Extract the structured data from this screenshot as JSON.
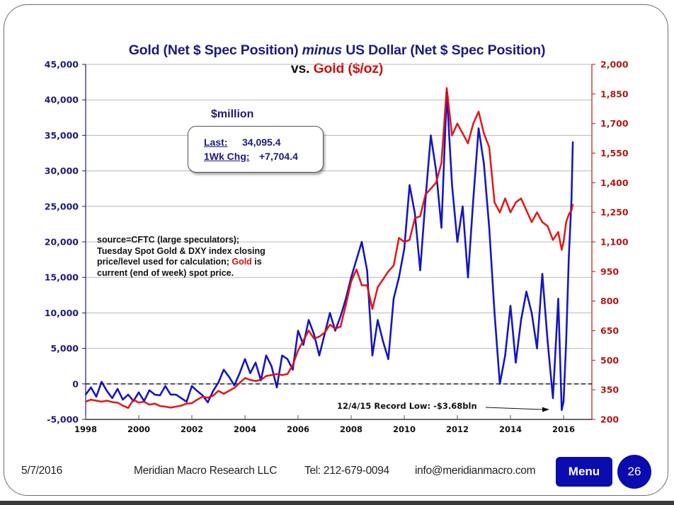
{
  "slide": {
    "title_part1": "Gold (Net $ Spec Position) ",
    "title_italic": "minus",
    "title_part2": " US Dollar (Net $ Spec Position)",
    "subtitle_vs": "vs. ",
    "subtitle_gold": "Gold ($/oz)",
    "unit_label": "$million",
    "stats": {
      "last_label": "Last:",
      "last_value": "34,095.4",
      "chg_label": "1Wk Chg:",
      "chg_value": "+7,704.4"
    },
    "source_note": {
      "line1": "source=CFTC (large speculators);",
      "line2": "Tuesday Spot Gold & DXY index closing",
      "line3a": "price/level used for calculation; ",
      "line3_gold": "Gold",
      "line3b": " is",
      "line4": "current (end of week) spot price."
    },
    "annotation": "12/4/15 Record Low:  -$3.68bln",
    "footer": {
      "date": "5/7/2016",
      "company": "Meridian Macro Research  LLC",
      "phone": "Tel: 212-679-0094",
      "email": "info@meridianmacro.com",
      "menu_label": "Menu",
      "page_number": "26"
    },
    "colors": {
      "net_position": "#0b0bb8",
      "gold": "#dd1111",
      "left_axis": "#1c1c7a",
      "right_axis": "#b01818",
      "button": "#0b0bb0"
    }
  },
  "chart_data": {
    "type": "line",
    "title": "Gold (Net $ Spec Position) minus US Dollar (Net $ Spec Position) vs. Gold ($/oz)",
    "xlabel": "",
    "x_range": [
      1998,
      2016.4
    ],
    "x_ticks": [
      "1998",
      "2000",
      "2002",
      "2004",
      "2006",
      "2008",
      "2010",
      "2012",
      "2014",
      "2016"
    ],
    "ylabel_left": "$million",
    "ylim_left": [
      -5000,
      45000
    ],
    "yticks_left": [
      "45,000",
      "40,000",
      "35,000",
      "30,000",
      "25,000",
      "20,000",
      "15,000",
      "10,000",
      "5,000",
      "0",
      "-5,000"
    ],
    "ylim_right": [
      200,
      2000
    ],
    "yticks_right": [
      "2,000",
      "1,850",
      "1,700",
      "1,550",
      "1,400",
      "1,250",
      "1,100",
      "950",
      "800",
      "650",
      "500",
      "350",
      "200"
    ],
    "grid": "horizontal",
    "reference_line": {
      "axis": "left",
      "value": 0,
      "style": "dashed"
    },
    "series": [
      {
        "name": "Gold minus USD Net $ Spec Position",
        "axis": "left",
        "x": [
          1998.0,
          1998.2,
          1998.4,
          1998.6,
          1998.8,
          1999.0,
          1999.2,
          1999.4,
          1999.6,
          1999.8,
          2000.0,
          2000.2,
          2000.4,
          2000.6,
          2000.8,
          2001.0,
          2001.2,
          2001.4,
          2001.6,
          2001.8,
          2002.0,
          2002.2,
          2002.4,
          2002.6,
          2002.8,
          2003.0,
          2003.2,
          2003.4,
          2003.6,
          2003.8,
          2004.0,
          2004.2,
          2004.4,
          2004.6,
          2004.8,
          2005.0,
          2005.2,
          2005.4,
          2005.6,
          2005.8,
          2006.0,
          2006.2,
          2006.4,
          2006.6,
          2006.8,
          2007.0,
          2007.2,
          2007.4,
          2007.6,
          2007.8,
          2008.0,
          2008.2,
          2008.4,
          2008.6,
          2008.8,
          2009.0,
          2009.2,
          2009.4,
          2009.6,
          2009.8,
          2010.0,
          2010.2,
          2010.4,
          2010.6,
          2010.8,
          2011.0,
          2011.2,
          2011.4,
          2011.6,
          2011.8,
          2012.0,
          2012.2,
          2012.4,
          2012.6,
          2012.8,
          2013.0,
          2013.2,
          2013.4,
          2013.6,
          2013.8,
          2014.0,
          2014.2,
          2014.4,
          2014.6,
          2014.8,
          2015.0,
          2015.2,
          2015.4,
          2015.6,
          2015.8,
          2015.93,
          2016.0,
          2016.1,
          2016.2,
          2016.3,
          2016.35
        ],
        "values": [
          -1500,
          -500,
          -1800,
          300,
          -1000,
          -2000,
          -700,
          -2200,
          -1500,
          -2400,
          -1200,
          -2400,
          -900,
          -1500,
          -1600,
          -300,
          -1500,
          -1500,
          -2000,
          -2500,
          -300,
          -1000,
          -1600,
          -2600,
          -1000,
          200,
          2000,
          1000,
          -200,
          1500,
          3500,
          1500,
          3000,
          500,
          4000,
          2500,
          -500,
          4000,
          3500,
          2000,
          7500,
          5500,
          9000,
          7000,
          4000,
          7000,
          10000,
          7500,
          9500,
          12000,
          15000,
          17500,
          20000,
          16000,
          4000,
          9000,
          6000,
          3500,
          12000,
          15000,
          19000,
          28000,
          24000,
          16000,
          26000,
          35000,
          30000,
          22000,
          41000,
          28000,
          20000,
          25000,
          15000,
          26000,
          36000,
          31000,
          22000,
          10000,
          0,
          4000,
          11000,
          3000,
          9000,
          13000,
          10000,
          5000,
          15500,
          6000,
          -2000,
          12000,
          -3680,
          -2500,
          6000,
          18000,
          26000,
          34095
        ]
      },
      {
        "name": "Gold ($/oz)",
        "axis": "right",
        "x": [
          1998.0,
          1998.2,
          1998.4,
          1998.6,
          1998.8,
          1999.0,
          1999.2,
          1999.4,
          1999.6,
          1999.8,
          2000.0,
          2000.2,
          2000.4,
          2000.6,
          2000.8,
          2001.0,
          2001.2,
          2001.4,
          2001.6,
          2001.8,
          2002.0,
          2002.2,
          2002.4,
          2002.6,
          2002.8,
          2003.0,
          2003.2,
          2003.4,
          2003.6,
          2003.8,
          2004.0,
          2004.2,
          2004.4,
          2004.6,
          2004.8,
          2005.0,
          2005.2,
          2005.4,
          2005.6,
          2005.8,
          2006.0,
          2006.2,
          2006.4,
          2006.6,
          2006.8,
          2007.0,
          2007.2,
          2007.4,
          2007.6,
          2007.8,
          2008.0,
          2008.2,
          2008.4,
          2008.6,
          2008.8,
          2009.0,
          2009.2,
          2009.4,
          2009.6,
          2009.8,
          2010.0,
          2010.2,
          2010.4,
          2010.6,
          2010.8,
          2011.0,
          2011.2,
          2011.4,
          2011.6,
          2011.8,
          2012.0,
          2012.2,
          2012.4,
          2012.6,
          2012.8,
          2013.0,
          2013.2,
          2013.4,
          2013.6,
          2013.8,
          2014.0,
          2014.2,
          2014.4,
          2014.6,
          2014.8,
          2015.0,
          2015.2,
          2015.4,
          2015.6,
          2015.8,
          2015.93,
          2016.0,
          2016.1,
          2016.2,
          2016.3,
          2016.35
        ],
        "values": [
          290,
          300,
          295,
          290,
          295,
          288,
          285,
          270,
          258,
          300,
          285,
          290,
          275,
          280,
          268,
          265,
          260,
          265,
          270,
          280,
          282,
          300,
          315,
          310,
          320,
          345,
          330,
          345,
          360,
          385,
          410,
          400,
          395,
          400,
          420,
          425,
          430,
          425,
          430,
          475,
          550,
          600,
          650,
          610,
          620,
          640,
          680,
          660,
          670,
          780,
          900,
          960,
          880,
          880,
          760,
          870,
          910,
          950,
          980,
          1120,
          1100,
          1110,
          1220,
          1230,
          1340,
          1370,
          1400,
          1500,
          1880,
          1640,
          1700,
          1650,
          1600,
          1700,
          1760,
          1650,
          1580,
          1300,
          1250,
          1320,
          1250,
          1300,
          1320,
          1260,
          1200,
          1250,
          1200,
          1180,
          1110,
          1150,
          1060,
          1100,
          1200,
          1240,
          1260,
          1290
        ]
      }
    ],
    "annotations": [
      "12/4/15 Record Low:  -$3.68bln"
    ]
  }
}
